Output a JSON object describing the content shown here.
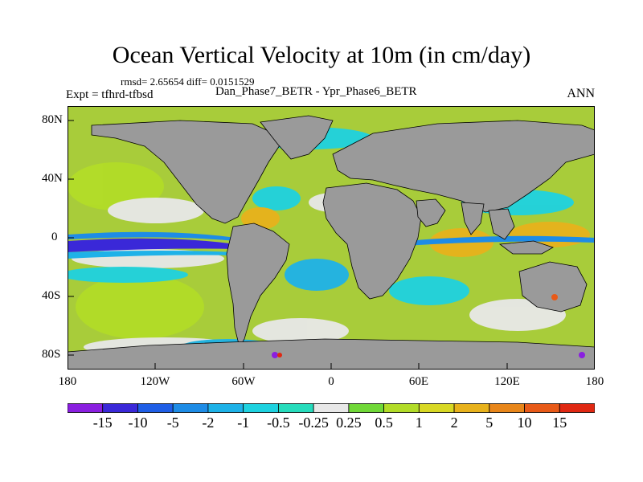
{
  "title": "Ocean Vertical Velocity at 10m (in cm/day)",
  "stats": "rmsd= 2.65654 diff= 0.0151529",
  "experiment": "Expt = tfhrd-tfbsd",
  "subtitle": "Dan_Phase7_BETR - Ypr_Phase6_BETR",
  "season": "ANN",
  "axes": {
    "y_ticks": [
      "80N",
      "40N",
      "0",
      "40S",
      "80S"
    ],
    "x_ticks": [
      "180",
      "120W",
      "60W",
      "0",
      "60E",
      "120E",
      "180"
    ]
  },
  "colorbar": {
    "labels": [
      "-15",
      "-10",
      "-5",
      "-2",
      "-1",
      "-0.5",
      "-0.25",
      "0.25",
      "0.5",
      "1",
      "2",
      "5",
      "10",
      "15"
    ],
    "colors": [
      "#8a1fe0",
      "#3a28d8",
      "#1f5ee6",
      "#1e8ce6",
      "#1eb2e8",
      "#1ed2e0",
      "#26dcbc",
      "#e8e8e8",
      "#70d838",
      "#b2dc28",
      "#d8d824",
      "#e8b21c",
      "#e8861a",
      "#e85a18",
      "#e02812"
    ]
  },
  "land_color": "#9a9a9a"
}
